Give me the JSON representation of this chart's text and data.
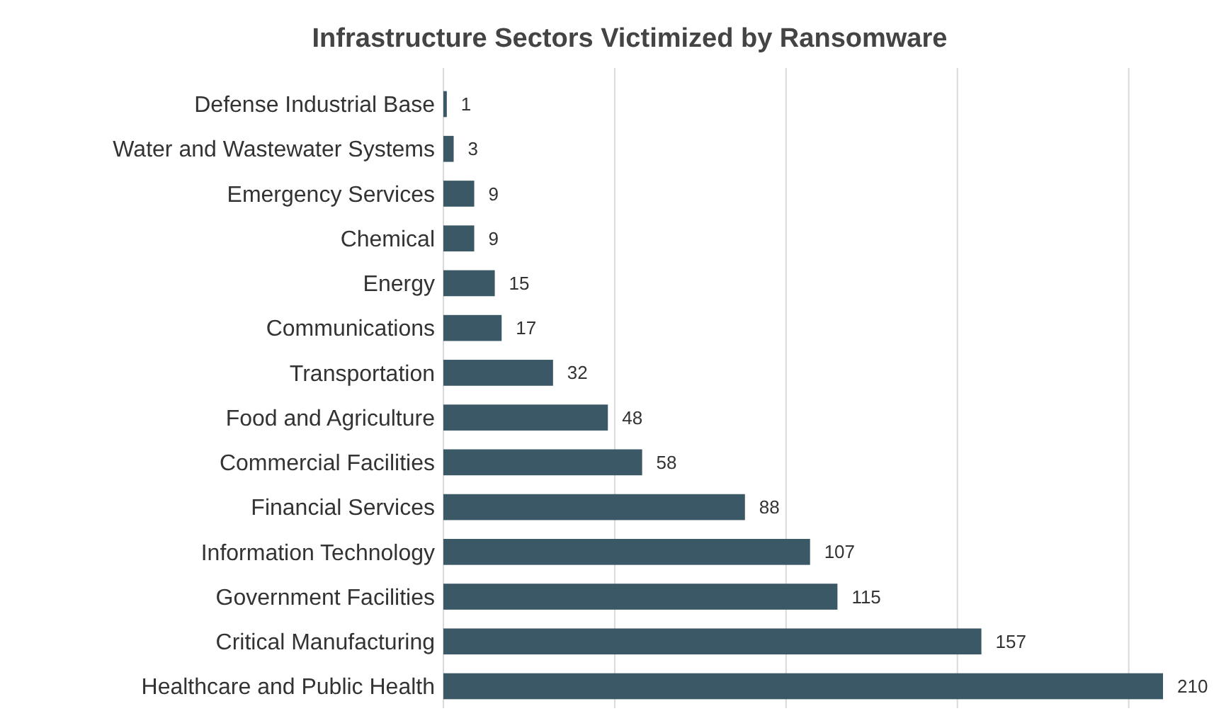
{
  "chart_data": {
    "type": "bar",
    "orientation": "horizontal",
    "title": "Infrastructure Sectors Victimized by Ransomware",
    "categories": [
      "Defense Industrial Base",
      "Water and Wastewater Systems",
      "Emergency Services",
      "Chemical",
      "Energy",
      "Communications",
      "Transportation",
      "Food and Agriculture",
      "Commercial Facilities",
      "Financial Services",
      "Information Technology",
      "Government Facilities",
      "Critical Manufacturing",
      "Healthcare and Public Health"
    ],
    "values": [
      1,
      3,
      9,
      9,
      15,
      17,
      32,
      48,
      58,
      88,
      107,
      115,
      157,
      210
    ],
    "color": "#3b5866",
    "xticks": [
      {
        "value": 0,
        "label": null
      },
      {
        "value": 50,
        "label": null
      },
      {
        "value": 100,
        "label": null
      },
      {
        "value": 150,
        "label": null
      },
      {
        "value": 200,
        "label": null
      }
    ],
    "tick_labels": "y",
    "grid": "x",
    "data_labels": true
  }
}
